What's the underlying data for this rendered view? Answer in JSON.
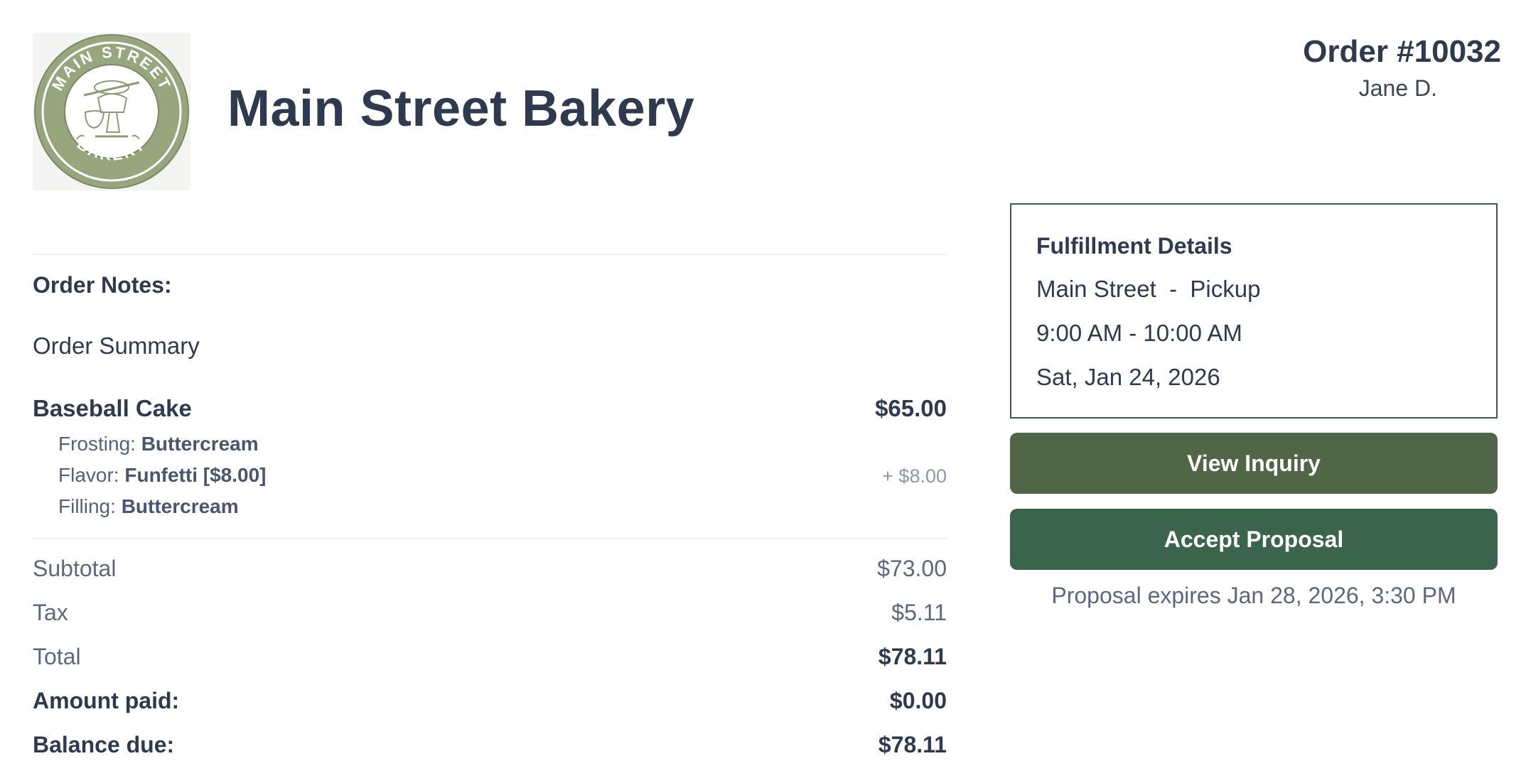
{
  "header": {
    "logo_text_top": "MAIN STREET",
    "logo_text_bottom": "BAKERY",
    "title": "Main Street Bakery"
  },
  "order": {
    "number": "Order #10032",
    "customer": "Jane D."
  },
  "notes": {
    "label": "Order Notes:"
  },
  "summary": {
    "title": "Order Summary",
    "item": {
      "name": "Baseball Cake",
      "price": "$65.00",
      "options": [
        {
          "label": "Frosting: ",
          "value": "Buttercream",
          "extra": ""
        },
        {
          "label": "Flavor: ",
          "value": "Funfetti [$8.00]",
          "extra": "+ $8.00"
        },
        {
          "label": "Filling: ",
          "value": "Buttercream",
          "extra": ""
        }
      ]
    },
    "totals": [
      {
        "label": "Subtotal",
        "value": "$73.00"
      },
      {
        "label": "Tax",
        "value": "$5.11"
      },
      {
        "label": "Total",
        "value": "$78.11"
      },
      {
        "label": "Amount paid:",
        "value": "$0.00"
      },
      {
        "label": "Balance due:",
        "value": "$78.11"
      }
    ]
  },
  "fulfillment": {
    "title": "Fulfillment Details",
    "location": "Main Street  -  Pickup",
    "time": "9:00 AM - 10:00 AM",
    "date": "Sat, Jan 24, 2026"
  },
  "actions": {
    "view_inquiry": "View Inquiry",
    "accept_proposal": "Accept Proposal",
    "expires": "Proposal expires Jan 28, 2026, 3:30 PM"
  },
  "colors": {
    "logo_green": "#98a67e",
    "view_inquiry_bg": "#516646",
    "accept_bg": "#3a644b",
    "text_dark": "#2f3a4f"
  }
}
